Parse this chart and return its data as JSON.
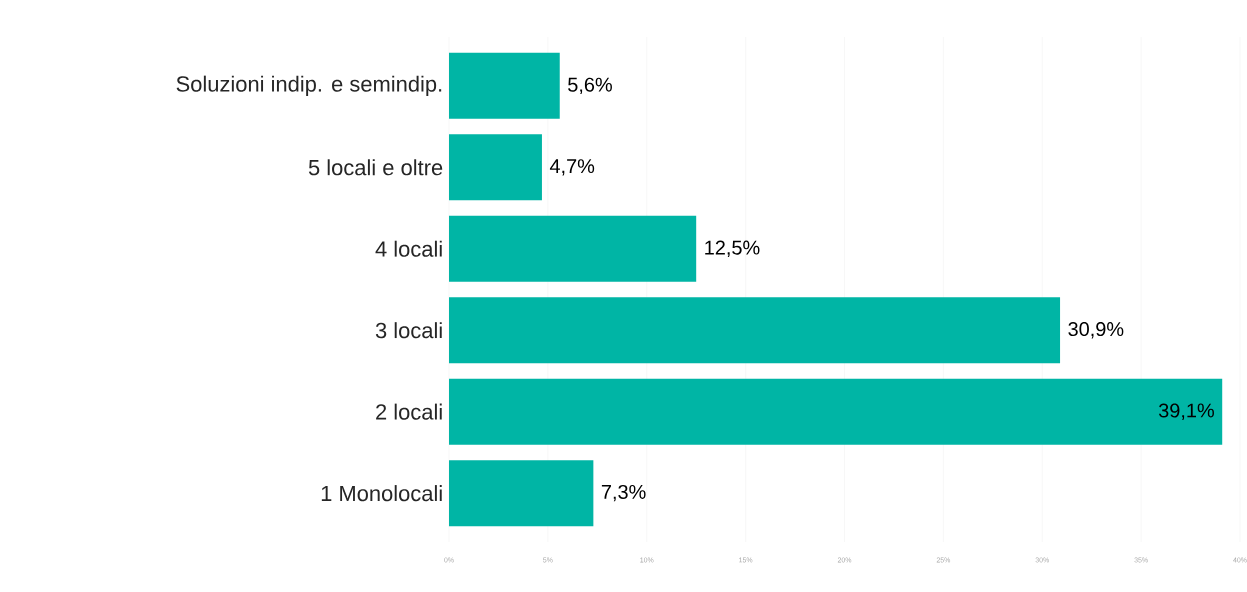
{
  "chart_data": {
    "type": "bar",
    "orientation": "horizontal",
    "categories": [
      "Soluzioni indip. e semindip.",
      "5 locali e oltre",
      "4 locali",
      "3 locali",
      "2 locali",
      "1 Monolocali"
    ],
    "values": [
      5.6,
      4.7,
      12.5,
      30.9,
      39.1,
      7.3
    ],
    "value_labels": [
      "5,6%",
      "4,7%",
      "12,5%",
      "30,9%",
      "39,1%",
      "7,3%"
    ],
    "color": "#00b5a5",
    "xlim": [
      0,
      40
    ],
    "xticks": [
      {
        "value": 0,
        "label": "0%"
      },
      {
        "value": 5,
        "label": "5%"
      },
      {
        "value": 10,
        "label": "10%"
      },
      {
        "value": 15,
        "label": "15%"
      },
      {
        "value": 20,
        "label": "20%"
      },
      {
        "value": 25,
        "label": "25%"
      },
      {
        "value": 30,
        "label": "30%"
      },
      {
        "value": 35,
        "label": "35%"
      },
      {
        "value": 40,
        "label": "40%"
      }
    ],
    "grid": "x"
  }
}
